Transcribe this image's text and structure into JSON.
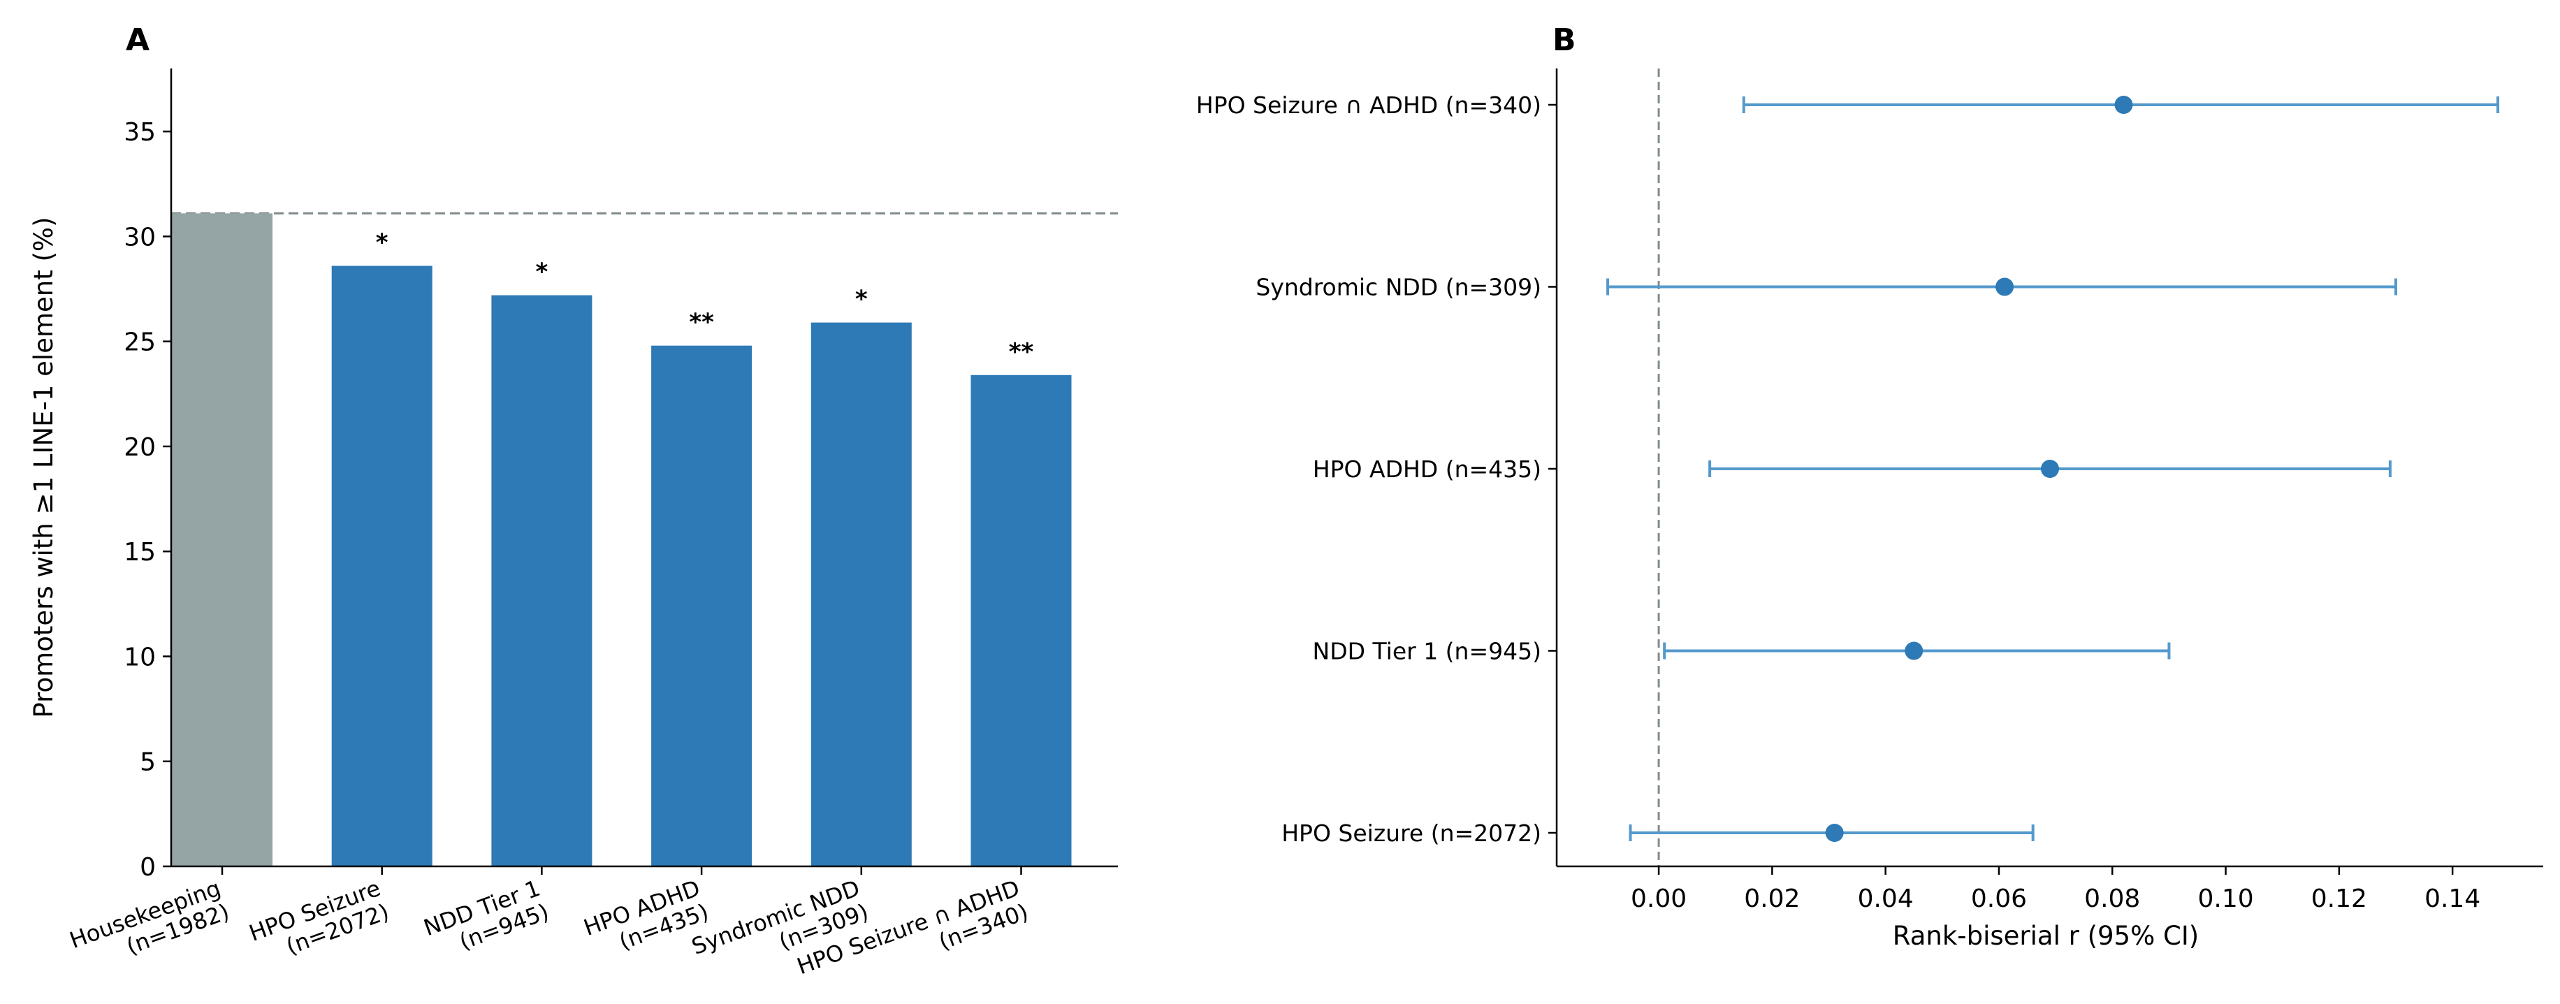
{
  "chart_data": [
    {
      "panel_label": "A",
      "type": "bar",
      "categories": [
        [
          "Housekeeping",
          "(n=1982)"
        ],
        [
          "HPO Seizure",
          "(n=2072)"
        ],
        [
          "NDD Tier 1",
          "(n=945)"
        ],
        [
          "HPO ADHD",
          "(n=435)"
        ],
        [
          "Syndromic NDD",
          "(n=309)"
        ],
        [
          "HPO Seizure ∩ ADHD",
          "(n=340)"
        ]
      ],
      "values": [
        31.1,
        28.6,
        27.2,
        24.8,
        25.9,
        23.4
      ],
      "significance": [
        "",
        "*",
        "*",
        "**",
        "*",
        "**"
      ],
      "bar_colors": [
        "#95a5a6",
        "#2e7ab6",
        "#2e7ab6",
        "#2e7ab6",
        "#2e7ab6",
        "#2e7ab6"
      ],
      "reference_line": 31.1,
      "reference_color": "#7f8c8d",
      "ylabel": "Promoters with ≥1 LINE-1 element (%)",
      "xlabel": "",
      "ylim": [
        0,
        38
      ],
      "yticks": [
        0,
        5,
        10,
        15,
        20,
        25,
        30,
        35
      ]
    },
    {
      "panel_label": "B",
      "type": "forest",
      "rows": [
        {
          "label": "HPO Seizure ∩ ADHD (n=340)",
          "estimate": 0.082,
          "ci": [
            0.015,
            0.148
          ]
        },
        {
          "label": "Syndromic NDD (n=309)",
          "estimate": 0.061,
          "ci": [
            -0.009,
            0.13
          ]
        },
        {
          "label": "HPO ADHD (n=435)",
          "estimate": 0.069,
          "ci": [
            0.009,
            0.129
          ]
        },
        {
          "label": "NDD Tier 1 (n=945)",
          "estimate": 0.045,
          "ci": [
            0.001,
            0.09
          ]
        },
        {
          "label": "HPO Seizure (n=2072)",
          "estimate": 0.031,
          "ci": [
            -0.005,
            0.066
          ]
        }
      ],
      "point_color": "#2e7ab6",
      "reference_line": 0,
      "xlabel": "Rank-biserial r (95% CI)",
      "xlim": [
        -0.018,
        0.156
      ],
      "xticks": [
        0.0,
        0.02,
        0.04,
        0.06,
        0.08,
        0.1,
        0.12,
        0.14
      ],
      "xtick_labels": [
        "0.00",
        "0.02",
        "0.04",
        "0.06",
        "0.08",
        "0.10",
        "0.12",
        "0.14"
      ]
    }
  ]
}
